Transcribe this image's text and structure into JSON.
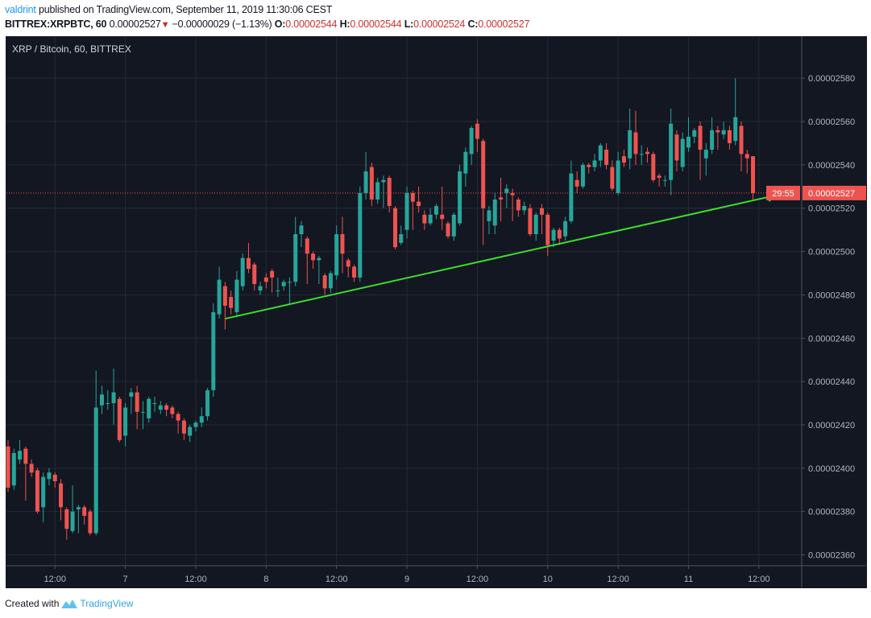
{
  "header": {
    "user": "valdrint",
    "published": "published on TradingView.com, September 11, 2019 11:30:06 CEST",
    "symbol": "BITTREX:XRPBTC, 60",
    "last": "0.00002527",
    "change": "−0.00000029 (−1.13%)",
    "change_direction_icon": "triangle-down-icon",
    "o_label": "O:",
    "o": "0.00002544",
    "h_label": "H:",
    "h": "0.00002544",
    "l_label": "L:",
    "l": "0.00002524",
    "c_label": "C:",
    "c": "0.00002527"
  },
  "footer": {
    "created_with": "Created with",
    "brand": "TradingView"
  },
  "colors": {
    "background": "#131722",
    "grid": "#262a35",
    "up": "#26a69a",
    "down": "#ef5350",
    "trendline": "#3ddc2c",
    "price_line": "#ef5350",
    "axis_text": "#b2b5be"
  },
  "chart_data": {
    "type": "candlestick",
    "title": "XRP / Bitcoin, 60, BITTREX",
    "interval": "60",
    "ylim": [
      2.355e-05,
      2.599e-05
    ],
    "grid": true,
    "y_ticks": [
      2.58e-05,
      2.56e-05,
      2.54e-05,
      2.52e-05,
      2.5e-05,
      2.48e-05,
      2.46e-05,
      2.44e-05,
      2.42e-05,
      2.4e-05,
      2.38e-05,
      2.36e-05
    ],
    "y_tick_labels": [
      "0.00002580",
      "0.00002560",
      "0.00002540",
      "0.00002520",
      "0.00002500",
      "0.00002480",
      "0.00002460",
      "0.00002440",
      "0.00002420",
      "0.00002400",
      "0.00002380",
      "0.00002360"
    ],
    "x_ticks": [
      {
        "label": "12:00",
        "t": "2019-09-06 12:00"
      },
      {
        "label": "7",
        "t": "2019-09-07 00:00"
      },
      {
        "label": "12:00",
        "t": "2019-09-07 12:00"
      },
      {
        "label": "8",
        "t": "2019-09-08 00:00"
      },
      {
        "label": "12:00",
        "t": "2019-09-08 12:00"
      },
      {
        "label": "9",
        "t": "2019-09-09 00:00"
      },
      {
        "label": "12:00",
        "t": "2019-09-09 12:00"
      },
      {
        "label": "10",
        "t": "2019-09-10 00:00"
      },
      {
        "label": "12:00",
        "t": "2019-09-10 12:00"
      },
      {
        "label": "11",
        "t": "2019-09-11 00:00"
      },
      {
        "label": "12:00",
        "t": "2019-09-11 12:00"
      }
    ],
    "current_price": 2.527e-05,
    "current_price_label": "0.00002527",
    "countdown": "29:55",
    "trendline": {
      "start": {
        "t": "2019-09-07 17:00",
        "p": 2.469e-05
      },
      "end": {
        "t": "2019-09-11 15:00",
        "p": 2.526e-05
      }
    },
    "columns": [
      "time",
      "open",
      "high",
      "low",
      "close"
    ],
    "candles": [
      [
        "2019-09-06 04:00",
        2.41e-05,
        2.413e-05,
        2.389e-05,
        2.391e-05
      ],
      [
        "2019-09-06 05:00",
        2.392e-05,
        2.409e-05,
        2.39e-05,
        2.407e-05
      ],
      [
        "2019-09-06 06:00",
        2.404e-05,
        2.413e-05,
        2.402e-05,
        2.408e-05
      ],
      [
        "2019-09-06 07:00",
        2.409e-05,
        2.41e-05,
        2.385e-05,
        2.402e-05
      ],
      [
        "2019-09-06 08:00",
        2.402e-05,
        2.404e-05,
        2.396e-05,
        2.398e-05
      ],
      [
        "2019-09-06 09:00",
        2.399e-05,
        2.4e-05,
        2.379e-05,
        2.38e-05
      ],
      [
        "2019-09-06 10:00",
        2.382e-05,
        2.398e-05,
        2.375e-05,
        2.396e-05
      ],
      [
        "2019-09-06 11:00",
        2.395e-05,
        2.4e-05,
        2.392e-05,
        2.398e-05
      ],
      [
        "2019-09-06 12:00",
        2.397e-05,
        2.398e-05,
        2.391e-05,
        2.394e-05
      ],
      [
        "2019-09-06 13:00",
        2.393e-05,
        2.395e-05,
        2.376e-05,
        2.382e-05
      ],
      [
        "2019-09-06 14:00",
        2.381e-05,
        2.382e-05,
        2.367e-05,
        2.372e-05
      ],
      [
        "2019-09-06 15:00",
        2.371e-05,
        2.392e-05,
        2.37e-05,
        2.38e-05
      ],
      [
        "2019-09-06 16:00",
        2.381e-05,
        2.383e-05,
        2.37e-05,
        2.382e-05
      ],
      [
        "2019-09-06 17:00",
        2.382e-05,
        2.383e-05,
        2.374e-05,
        2.378e-05
      ],
      [
        "2019-09-06 18:00",
        2.38e-05,
        2.381e-05,
        2.369e-05,
        2.37e-05
      ],
      [
        "2019-09-06 19:00",
        2.37e-05,
        2.445e-05,
        2.369e-05,
        2.428e-05
      ],
      [
        "2019-09-06 20:00",
        2.429e-05,
        2.438e-05,
        2.425e-05,
        2.434e-05
      ],
      [
        "2019-09-06 21:00",
        2.43e-05,
        2.436e-05,
        2.427e-05,
        2.43e-05
      ],
      [
        "2019-09-06 22:00",
        2.43e-05,
        2.446e-05,
        2.42e-05,
        2.435e-05
      ],
      [
        "2019-09-06 23:00",
        2.432e-05,
        2.433e-05,
        2.412e-05,
        2.413e-05
      ],
      [
        "2019-09-07 00:00",
        2.415e-05,
        2.43e-05,
        2.41e-05,
        2.428e-05
      ],
      [
        "2019-09-07 01:00",
        2.433e-05,
        2.437e-05,
        2.425e-05,
        2.435e-05
      ],
      [
        "2019-09-07 02:00",
        2.435e-05,
        2.438e-05,
        2.418e-05,
        2.426e-05
      ],
      [
        "2019-09-07 03:00",
        2.426e-05,
        2.431e-05,
        2.418e-05,
        2.426e-05
      ],
      [
        "2019-09-07 04:00",
        2.423e-05,
        2.433e-05,
        2.421e-05,
        2.432e-05
      ],
      [
        "2019-09-07 05:00",
        2.43e-05,
        2.433e-05,
        2.426e-05,
        2.43e-05
      ],
      [
        "2019-09-07 06:00",
        2.427e-05,
        2.431e-05,
        2.425e-05,
        2.429e-05
      ],
      [
        "2019-09-07 07:00",
        2.429e-05,
        2.43e-05,
        2.424e-05,
        2.427e-05
      ],
      [
        "2019-09-07 08:00",
        2.428e-05,
        2.429e-05,
        2.423e-05,
        2.425e-05
      ],
      [
        "2019-09-07 09:00",
        2.425e-05,
        2.426e-05,
        2.416e-05,
        2.422e-05
      ],
      [
        "2019-09-07 10:00",
        2.422e-05,
        2.423e-05,
        2.413e-05,
        2.416e-05
      ],
      [
        "2019-09-07 11:00",
        2.415e-05,
        2.42e-05,
        2.412e-05,
        2.419e-05
      ],
      [
        "2019-09-07 12:00",
        2.419e-05,
        2.422e-05,
        2.417e-05,
        2.421e-05
      ],
      [
        "2019-09-07 13:00",
        2.421e-05,
        2.428e-05,
        2.419e-05,
        2.424e-05
      ],
      [
        "2019-09-07 14:00",
        2.424e-05,
        2.437e-05,
        2.422e-05,
        2.436e-05
      ],
      [
        "2019-09-07 15:00",
        2.436e-05,
        2.476e-05,
        2.433e-05,
        2.472e-05
      ],
      [
        "2019-09-07 16:00",
        2.471e-05,
        2.493e-05,
        2.469e-05,
        2.487e-05
      ],
      [
        "2019-09-07 17:00",
        2.484e-05,
        2.486e-05,
        2.464e-05,
        2.475e-05
      ],
      [
        "2019-09-07 18:00",
        2.479e-05,
        2.482e-05,
        2.471e-05,
        2.474e-05
      ],
      [
        "2019-09-07 19:00",
        2.472e-05,
        2.491e-05,
        2.47e-05,
        2.487e-05
      ],
      [
        "2019-09-07 20:00",
        2.484e-05,
        2.499e-05,
        2.482e-05,
        2.497e-05
      ],
      [
        "2019-09-07 21:00",
        2.497e-05,
        2.504e-05,
        2.49e-05,
        2.492e-05
      ],
      [
        "2019-09-07 22:00",
        2.494e-05,
        2.495e-05,
        2.482e-05,
        2.485e-05
      ],
      [
        "2019-09-07 23:00",
        2.482e-05,
        2.486e-05,
        2.48e-05,
        2.484e-05
      ],
      [
        "2019-09-08 00:00",
        2.488e-05,
        2.49e-05,
        2.483e-05,
        2.486e-05
      ],
      [
        "2019-09-08 01:00",
        2.491e-05,
        2.492e-05,
        2.481e-05,
        2.488e-05
      ],
      [
        "2019-09-08 02:00",
        2.482e-05,
        2.488e-05,
        2.479e-05,
        2.482e-05
      ],
      [
        "2019-09-08 03:00",
        2.484e-05,
        2.487e-05,
        2.482e-05,
        2.486e-05
      ],
      [
        "2019-09-08 04:00",
        2.486e-05,
        2.488e-05,
        2.476e-05,
        2.486e-05
      ],
      [
        "2019-09-08 05:00",
        2.486e-05,
        2.516e-05,
        2.484e-05,
        2.508e-05
      ],
      [
        "2019-09-08 06:00",
        2.508e-05,
        2.514e-05,
        2.502e-05,
        2.512e-05
      ],
      [
        "2019-09-08 07:00",
        2.506e-05,
        2.507e-05,
        2.485e-05,
        2.499e-05
      ],
      [
        "2019-09-08 08:00",
        2.499e-05,
        2.5e-05,
        2.492e-05,
        2.496e-05
      ],
      [
        "2019-09-08 09:00",
        2.496e-05,
        2.498e-05,
        2.485e-05,
        2.497e-05
      ],
      [
        "2019-09-08 10:00",
        2.489e-05,
        2.49e-05,
        2.48e-05,
        2.483e-05
      ],
      [
        "2019-09-08 11:00",
        2.483e-05,
        2.491e-05,
        2.481e-05,
        2.49e-05
      ],
      [
        "2019-09-08 12:00",
        2.489e-05,
        2.512e-05,
        2.487e-05,
        2.508e-05
      ],
      [
        "2019-09-08 13:00",
        2.508e-05,
        2.516e-05,
        2.49e-05,
        2.499e-05
      ],
      [
        "2019-09-08 14:00",
        2.496e-05,
        2.497e-05,
        2.488e-05,
        2.493e-05
      ],
      [
        "2019-09-08 15:00",
        2.493e-05,
        2.494e-05,
        2.486e-05,
        2.488e-05
      ],
      [
        "2019-09-08 16:00",
        2.488e-05,
        2.53e-05,
        2.486e-05,
        2.527e-05
      ],
      [
        "2019-09-08 17:00",
        2.527e-05,
        2.546e-05,
        2.524e-05,
        2.537e-05
      ],
      [
        "2019-09-08 18:00",
        2.539e-05,
        2.541e-05,
        2.521e-05,
        2.524e-05
      ],
      [
        "2019-09-08 19:00",
        2.524e-05,
        2.534e-05,
        2.522e-05,
        2.532e-05
      ],
      [
        "2019-09-08 20:00",
        2.532e-05,
        2.535e-05,
        2.52e-05,
        2.533e-05
      ],
      [
        "2019-09-08 21:00",
        2.534e-05,
        2.535e-05,
        2.518e-05,
        2.521e-05
      ],
      [
        "2019-09-08 22:00",
        2.52e-05,
        2.521e-05,
        2.501e-05,
        2.502e-05
      ],
      [
        "2019-09-08 23:00",
        2.504e-05,
        2.512e-05,
        2.503e-05,
        2.508e-05
      ],
      [
        "2019-09-09 00:00",
        2.51e-05,
        2.53e-05,
        2.506e-05,
        2.527e-05
      ],
      [
        "2019-09-09 01:00",
        2.527e-05,
        2.528e-05,
        2.51e-05,
        2.523e-05
      ],
      [
        "2019-09-09 02:00",
        2.523e-05,
        2.53e-05,
        2.518e-05,
        2.521e-05
      ],
      [
        "2019-09-09 03:00",
        2.517e-05,
        2.519e-05,
        2.51e-05,
        2.513e-05
      ],
      [
        "2019-09-09 04:00",
        2.513e-05,
        2.52e-05,
        2.512e-05,
        2.517e-05
      ],
      [
        "2019-09-09 05:00",
        2.517e-05,
        2.522e-05,
        2.515e-05,
        2.521e-05
      ],
      [
        "2019-09-09 06:00",
        2.517e-05,
        2.53e-05,
        2.51e-05,
        2.515e-05
      ],
      [
        "2019-09-09 07:00",
        2.513e-05,
        2.514e-05,
        2.506e-05,
        2.507e-05
      ],
      [
        "2019-09-09 08:00",
        2.507e-05,
        2.518e-05,
        2.505e-05,
        2.517e-05
      ],
      [
        "2019-09-09 09:00",
        2.513e-05,
        2.54e-05,
        2.512e-05,
        2.537e-05
      ],
      [
        "2019-09-09 10:00",
        2.536e-05,
        2.548e-05,
        2.53e-05,
        2.546e-05
      ],
      [
        "2019-09-09 11:00",
        2.545e-05,
        2.558e-05,
        2.54e-05,
        2.557e-05
      ],
      [
        "2019-09-09 12:00",
        2.559e-05,
        2.561e-05,
        2.546e-05,
        2.552e-05
      ],
      [
        "2019-09-09 13:00",
        2.551e-05,
        2.552e-05,
        2.503e-05,
        2.52e-05
      ],
      [
        "2019-09-09 14:00",
        2.514e-05,
        2.521e-05,
        2.508e-05,
        2.519e-05
      ],
      [
        "2019-09-09 15:00",
        2.512e-05,
        2.527e-05,
        2.508e-05,
        2.524e-05
      ],
      [
        "2019-09-09 16:00",
        2.525e-05,
        2.534e-05,
        2.514e-05,
        2.524e-05
      ],
      [
        "2019-09-09 17:00",
        2.527e-05,
        2.531e-05,
        2.52e-05,
        2.529e-05
      ],
      [
        "2019-09-09 18:00",
        2.527e-05,
        2.529e-05,
        2.514e-05,
        2.526e-05
      ],
      [
        "2019-09-09 19:00",
        2.524e-05,
        2.525e-05,
        2.516e-05,
        2.519e-05
      ],
      [
        "2019-09-09 20:00",
        2.519e-05,
        2.523e-05,
        2.517e-05,
        2.521e-05
      ],
      [
        "2019-09-09 21:00",
        2.52e-05,
        2.522e-05,
        2.507e-05,
        2.508e-05
      ],
      [
        "2019-09-09 22:00",
        2.508e-05,
        2.518e-05,
        2.505e-05,
        2.517e-05
      ],
      [
        "2019-09-09 23:00",
        2.52e-05,
        2.522e-05,
        2.508e-05,
        2.517e-05
      ],
      [
        "2019-09-10 00:00",
        2.517e-05,
        2.518e-05,
        2.498e-05,
        2.503e-05
      ],
      [
        "2019-09-10 01:00",
        2.505e-05,
        2.511e-05,
        2.502e-05,
        2.51e-05
      ],
      [
        "2019-09-10 02:00",
        2.51e-05,
        2.511e-05,
        2.503e-05,
        2.506e-05
      ],
      [
        "2019-09-10 03:00",
        2.507e-05,
        2.516e-05,
        2.505e-05,
        2.514e-05
      ],
      [
        "2019-09-10 04:00",
        2.514e-05,
        2.542e-05,
        2.513e-05,
        2.536e-05
      ],
      [
        "2019-09-10 05:00",
        2.533e-05,
        2.537e-05,
        2.527e-05,
        2.53e-05
      ],
      [
        "2019-09-10 06:00",
        2.53e-05,
        2.541e-05,
        2.529e-05,
        2.54e-05
      ],
      [
        "2019-09-10 07:00",
        2.54e-05,
        2.541e-05,
        2.536e-05,
        2.539e-05
      ],
      [
        "2019-09-10 08:00",
        2.539e-05,
        2.545e-05,
        2.537e-05,
        2.542e-05
      ],
      [
        "2019-09-10 09:00",
        2.542e-05,
        2.55e-05,
        2.539e-05,
        2.549e-05
      ],
      [
        "2019-09-10 10:00",
        2.547e-05,
        2.55e-05,
        2.538e-05,
        2.54e-05
      ],
      [
        "2019-09-10 11:00",
        2.539e-05,
        2.542e-05,
        2.528e-05,
        2.529e-05
      ],
      [
        "2019-09-10 12:00",
        2.527e-05,
        2.546e-05,
        2.526e-05,
        2.542e-05
      ],
      [
        "2019-09-10 13:00",
        2.544e-05,
        2.547e-05,
        2.539e-05,
        2.541e-05
      ],
      [
        "2019-09-10 14:00",
        2.543e-05,
        2.566e-05,
        2.538e-05,
        2.556e-05
      ],
      [
        "2019-09-10 15:00",
        2.555e-05,
        2.565e-05,
        2.54e-05,
        2.545e-05
      ],
      [
        "2019-09-10 16:00",
        2.545e-05,
        2.549e-05,
        2.54e-05,
        2.545e-05
      ],
      [
        "2019-09-10 17:00",
        2.546e-05,
        2.548e-05,
        2.541e-05,
        2.545e-05
      ],
      [
        "2019-09-10 18:00",
        2.545e-05,
        2.546e-05,
        2.532e-05,
        2.533e-05
      ],
      [
        "2019-09-10 19:00",
        2.535e-05,
        2.536e-05,
        2.53e-05,
        2.534e-05
      ],
      [
        "2019-09-10 20:00",
        2.533e-05,
        2.535e-05,
        2.53e-05,
        2.533e-05
      ],
      [
        "2019-09-10 21:00",
        2.533e-05,
        2.566e-05,
        2.526e-05,
        2.559e-05
      ],
      [
        "2019-09-10 22:00",
        2.554e-05,
        2.556e-05,
        2.537e-05,
        2.542e-05
      ],
      [
        "2019-09-10 23:00",
        2.539e-05,
        2.555e-05,
        2.537e-05,
        2.552e-05
      ],
      [
        "2019-09-11 00:00",
        2.548e-05,
        2.562e-05,
        2.546e-05,
        2.553e-05
      ],
      [
        "2019-09-11 01:00",
        2.553e-05,
        2.557e-05,
        2.55e-05,
        2.556e-05
      ],
      [
        "2019-09-11 02:00",
        2.558e-05,
        2.56e-05,
        2.533e-05,
        2.547e-05
      ],
      [
        "2019-09-11 03:00",
        2.543e-05,
        2.55e-05,
        2.535e-05,
        2.547e-05
      ],
      [
        "2019-09-11 04:00",
        2.547e-05,
        2.562e-05,
        2.545e-05,
        2.556e-05
      ],
      [
        "2019-09-11 05:00",
        2.556e-05,
        2.558e-05,
        2.547e-05,
        2.555e-05
      ],
      [
        "2019-09-11 06:00",
        2.554e-05,
        2.56e-05,
        2.552e-05,
        2.556e-05
      ],
      [
        "2019-09-11 07:00",
        2.556e-05,
        2.558e-05,
        2.547e-05,
        2.55e-05
      ],
      [
        "2019-09-11 08:00",
        2.551e-05,
        2.58e-05,
        2.549e-05,
        2.562e-05
      ],
      [
        "2019-09-11 09:00",
        2.558e-05,
        2.56e-05,
        2.537e-05,
        2.545e-05
      ],
      [
        "2019-09-11 10:00",
        2.545e-05,
        2.547e-05,
        2.536e-05,
        2.543e-05
      ],
      [
        "2019-09-11 11:00",
        2.544e-05,
        2.544e-05,
        2.524e-05,
        2.527e-05
      ]
    ]
  }
}
